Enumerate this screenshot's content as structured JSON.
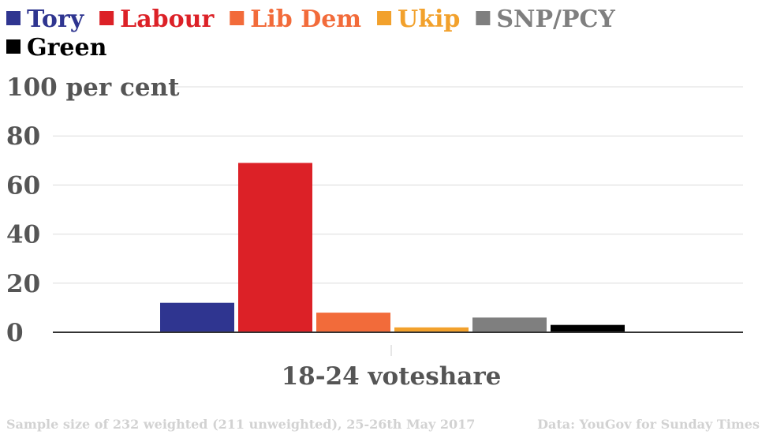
{
  "chart_data": {
    "type": "bar",
    "categories": [
      "18-24 voteshare"
    ],
    "series": [
      {
        "name": "Tory",
        "values": [
          12
        ],
        "color": "#2f3590"
      },
      {
        "name": "Labour",
        "values": [
          69
        ],
        "color": "#dc2127"
      },
      {
        "name": "Lib Dem",
        "values": [
          8
        ],
        "color": "#f26b3a"
      },
      {
        "name": "Ukip",
        "values": [
          2
        ],
        "color": "#f2a12c"
      },
      {
        "name": "SNP/PCY",
        "values": [
          6
        ],
        "color": "#7f7f7f"
      },
      {
        "name": "Green",
        "values": [
          3
        ],
        "color": "#000000"
      }
    ],
    "xlabel": "18-24 voteshare",
    "ylabel": "",
    "ylim": [
      0,
      100
    ],
    "yticks": [
      {
        "value": 0,
        "label": "0"
      },
      {
        "value": 20,
        "label": "20"
      },
      {
        "value": 40,
        "label": "40"
      },
      {
        "value": 60,
        "label": "60"
      },
      {
        "value": 80,
        "label": "80"
      },
      {
        "value": 100,
        "label": "100 per cent"
      }
    ],
    "grid": true,
    "legend_position": "top-left"
  },
  "footer": {
    "source_note": "Sample size of 232 weighted (211 unweighted), 25-26th May 2017",
    "credit": "Data: YouGov for Sunday Times"
  }
}
